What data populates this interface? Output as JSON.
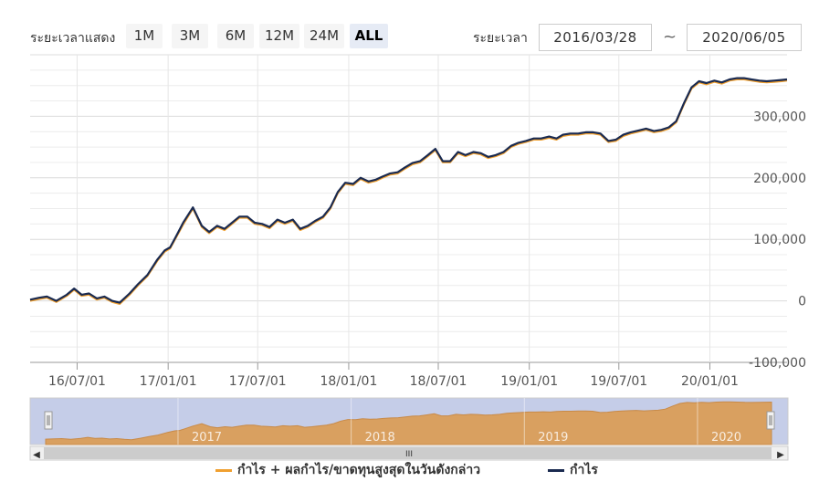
{
  "range_selector": {
    "label": "ระยะเวลาแสดง",
    "buttons": [
      "1M",
      "3M",
      "6M",
      "12M",
      "24M",
      "ALL"
    ],
    "active": "ALL"
  },
  "date_range": {
    "label": "ระยะเวลา",
    "from": "2016/03/28",
    "separator": "~",
    "to": "2020/06/05"
  },
  "legend": {
    "items": [
      {
        "name": "กำไร + ผลกำไร/ขาดทุนสูงสุดในวันดังกล่าว",
        "color": "#f0a030"
      },
      {
        "name": "กำไร",
        "color": "#1a2a50"
      }
    ]
  },
  "navigator": {
    "year_labels": [
      "2017",
      "2018",
      "2019",
      "2020"
    ],
    "scrollbar_grip": "III"
  },
  "colors": {
    "line_profit": "#1a2a50",
    "line_profit_plus": "#f0a030",
    "navigator_fill": "#d9a060",
    "navigator_mask": "#c5cde8",
    "grid": "#e6e6e6"
  },
  "chart_data": {
    "type": "line",
    "x_tick_labels": [
      "16/07/01",
      "17/01/01",
      "17/07/01",
      "18/01/01",
      "18/07/01",
      "19/01/01",
      "19/07/01",
      "20/01/01"
    ],
    "y_tick_labels": [
      "-100,000",
      "0",
      "100,000",
      "200,000",
      "300,000"
    ],
    "ylim": [
      -100000,
      400000
    ],
    "xlim": [
      "2016-03-28",
      "2020-06-05"
    ],
    "grid": true,
    "legend_position": "bottom",
    "x": [
      "2016-03-28",
      "2016-04-15",
      "2016-05-01",
      "2016-05-20",
      "2016-06-10",
      "2016-06-25",
      "2016-07-10",
      "2016-07-25",
      "2016-08-10",
      "2016-08-25",
      "2016-09-10",
      "2016-09-25",
      "2016-10-15",
      "2016-11-01",
      "2016-11-20",
      "2016-12-10",
      "2016-12-25",
      "2017-01-05",
      "2017-01-15",
      "2017-02-01",
      "2017-02-20",
      "2017-03-10",
      "2017-03-25",
      "2017-04-10",
      "2017-04-25",
      "2017-05-10",
      "2017-05-25",
      "2017-06-10",
      "2017-06-25",
      "2017-07-10",
      "2017-07-25",
      "2017-08-10",
      "2017-08-25",
      "2017-09-10",
      "2017-09-25",
      "2017-10-10",
      "2017-10-25",
      "2017-11-10",
      "2017-11-25",
      "2017-12-10",
      "2017-12-25",
      "2018-01-10",
      "2018-01-25",
      "2018-02-10",
      "2018-02-25",
      "2018-03-10",
      "2018-03-25",
      "2018-04-10",
      "2018-04-25",
      "2018-05-10",
      "2018-05-25",
      "2018-06-10",
      "2018-06-25",
      "2018-07-10",
      "2018-07-25",
      "2018-08-10",
      "2018-08-25",
      "2018-09-10",
      "2018-09-25",
      "2018-10-10",
      "2018-10-25",
      "2018-11-10",
      "2018-11-25",
      "2018-12-10",
      "2018-12-25",
      "2019-01-10",
      "2019-01-25",
      "2019-02-10",
      "2019-02-25",
      "2019-03-10",
      "2019-03-25",
      "2019-04-10",
      "2019-04-25",
      "2019-05-10",
      "2019-05-25",
      "2019-06-10",
      "2019-06-25",
      "2019-07-10",
      "2019-07-25",
      "2019-08-10",
      "2019-08-25",
      "2019-09-10",
      "2019-09-25",
      "2019-10-10",
      "2019-10-25",
      "2019-11-10",
      "2019-11-25",
      "2019-12-10",
      "2019-12-25",
      "2020-01-10",
      "2020-01-25",
      "2020-02-10",
      "2020-02-25",
      "2020-03-10",
      "2020-03-25",
      "2020-04-10",
      "2020-04-25",
      "2020-05-10",
      "2020-05-25",
      "2020-06-05"
    ],
    "series": [
      {
        "name": "กำไร + ผลกำไร/ขาดทุนสูงสุดในวันดังกล่าว",
        "values": [
          0,
          3000,
          5000,
          -2000,
          8000,
          18000,
          8000,
          10000,
          2000,
          5000,
          -2000,
          -5000,
          10000,
          25000,
          40000,
          65000,
          80000,
          85000,
          100000,
          125000,
          150000,
          120000,
          110000,
          120000,
          115000,
          125000,
          135000,
          135000,
          125000,
          123000,
          118000,
          130000,
          125000,
          130000,
          115000,
          120000,
          128000,
          135000,
          150000,
          175000,
          190000,
          188000,
          198000,
          192000,
          195000,
          200000,
          205000,
          207000,
          215000,
          222000,
          225000,
          235000,
          245000,
          225000,
          225000,
          240000,
          235000,
          240000,
          238000,
          232000,
          235000,
          240000,
          250000,
          255000,
          258000,
          262000,
          262000,
          265000,
          262000,
          268000,
          270000,
          270000,
          272000,
          272000,
          270000,
          258000,
          260000,
          268000,
          272000,
          275000,
          278000,
          274000,
          276000,
          280000,
          290000,
          320000,
          345000,
          355000,
          352000,
          356000,
          353000,
          358000,
          360000,
          360000,
          358000,
          356000,
          355000,
          356000,
          357000,
          358000
        ]
      },
      {
        "name": "กำไร",
        "values": [
          2000,
          5000,
          7000,
          0,
          10000,
          20000,
          10000,
          12000,
          4000,
          7000,
          0,
          -3000,
          12000,
          27000,
          42000,
          67000,
          82000,
          87000,
          102000,
          128000,
          152000,
          122000,
          112000,
          122000,
          117000,
          127000,
          137000,
          137000,
          127000,
          125000,
          120000,
          132000,
          127000,
          132000,
          117000,
          122000,
          130000,
          137000,
          152000,
          177000,
          192000,
          190000,
          200000,
          194000,
          197000,
          202000,
          207000,
          209000,
          217000,
          224000,
          227000,
          237000,
          247000,
          227000,
          227000,
          242000,
          237000,
          242000,
          240000,
          234000,
          237000,
          242000,
          252000,
          257000,
          260000,
          264000,
          264000,
          267000,
          264000,
          270000,
          272000,
          272000,
          274000,
          274000,
          272000,
          260000,
          262000,
          270000,
          274000,
          277000,
          280000,
          276000,
          278000,
          282000,
          292000,
          322000,
          347000,
          357000,
          354000,
          358000,
          355000,
          360000,
          362000,
          362000,
          360000,
          358000,
          357000,
          358000,
          359000,
          360000
        ]
      }
    ]
  }
}
